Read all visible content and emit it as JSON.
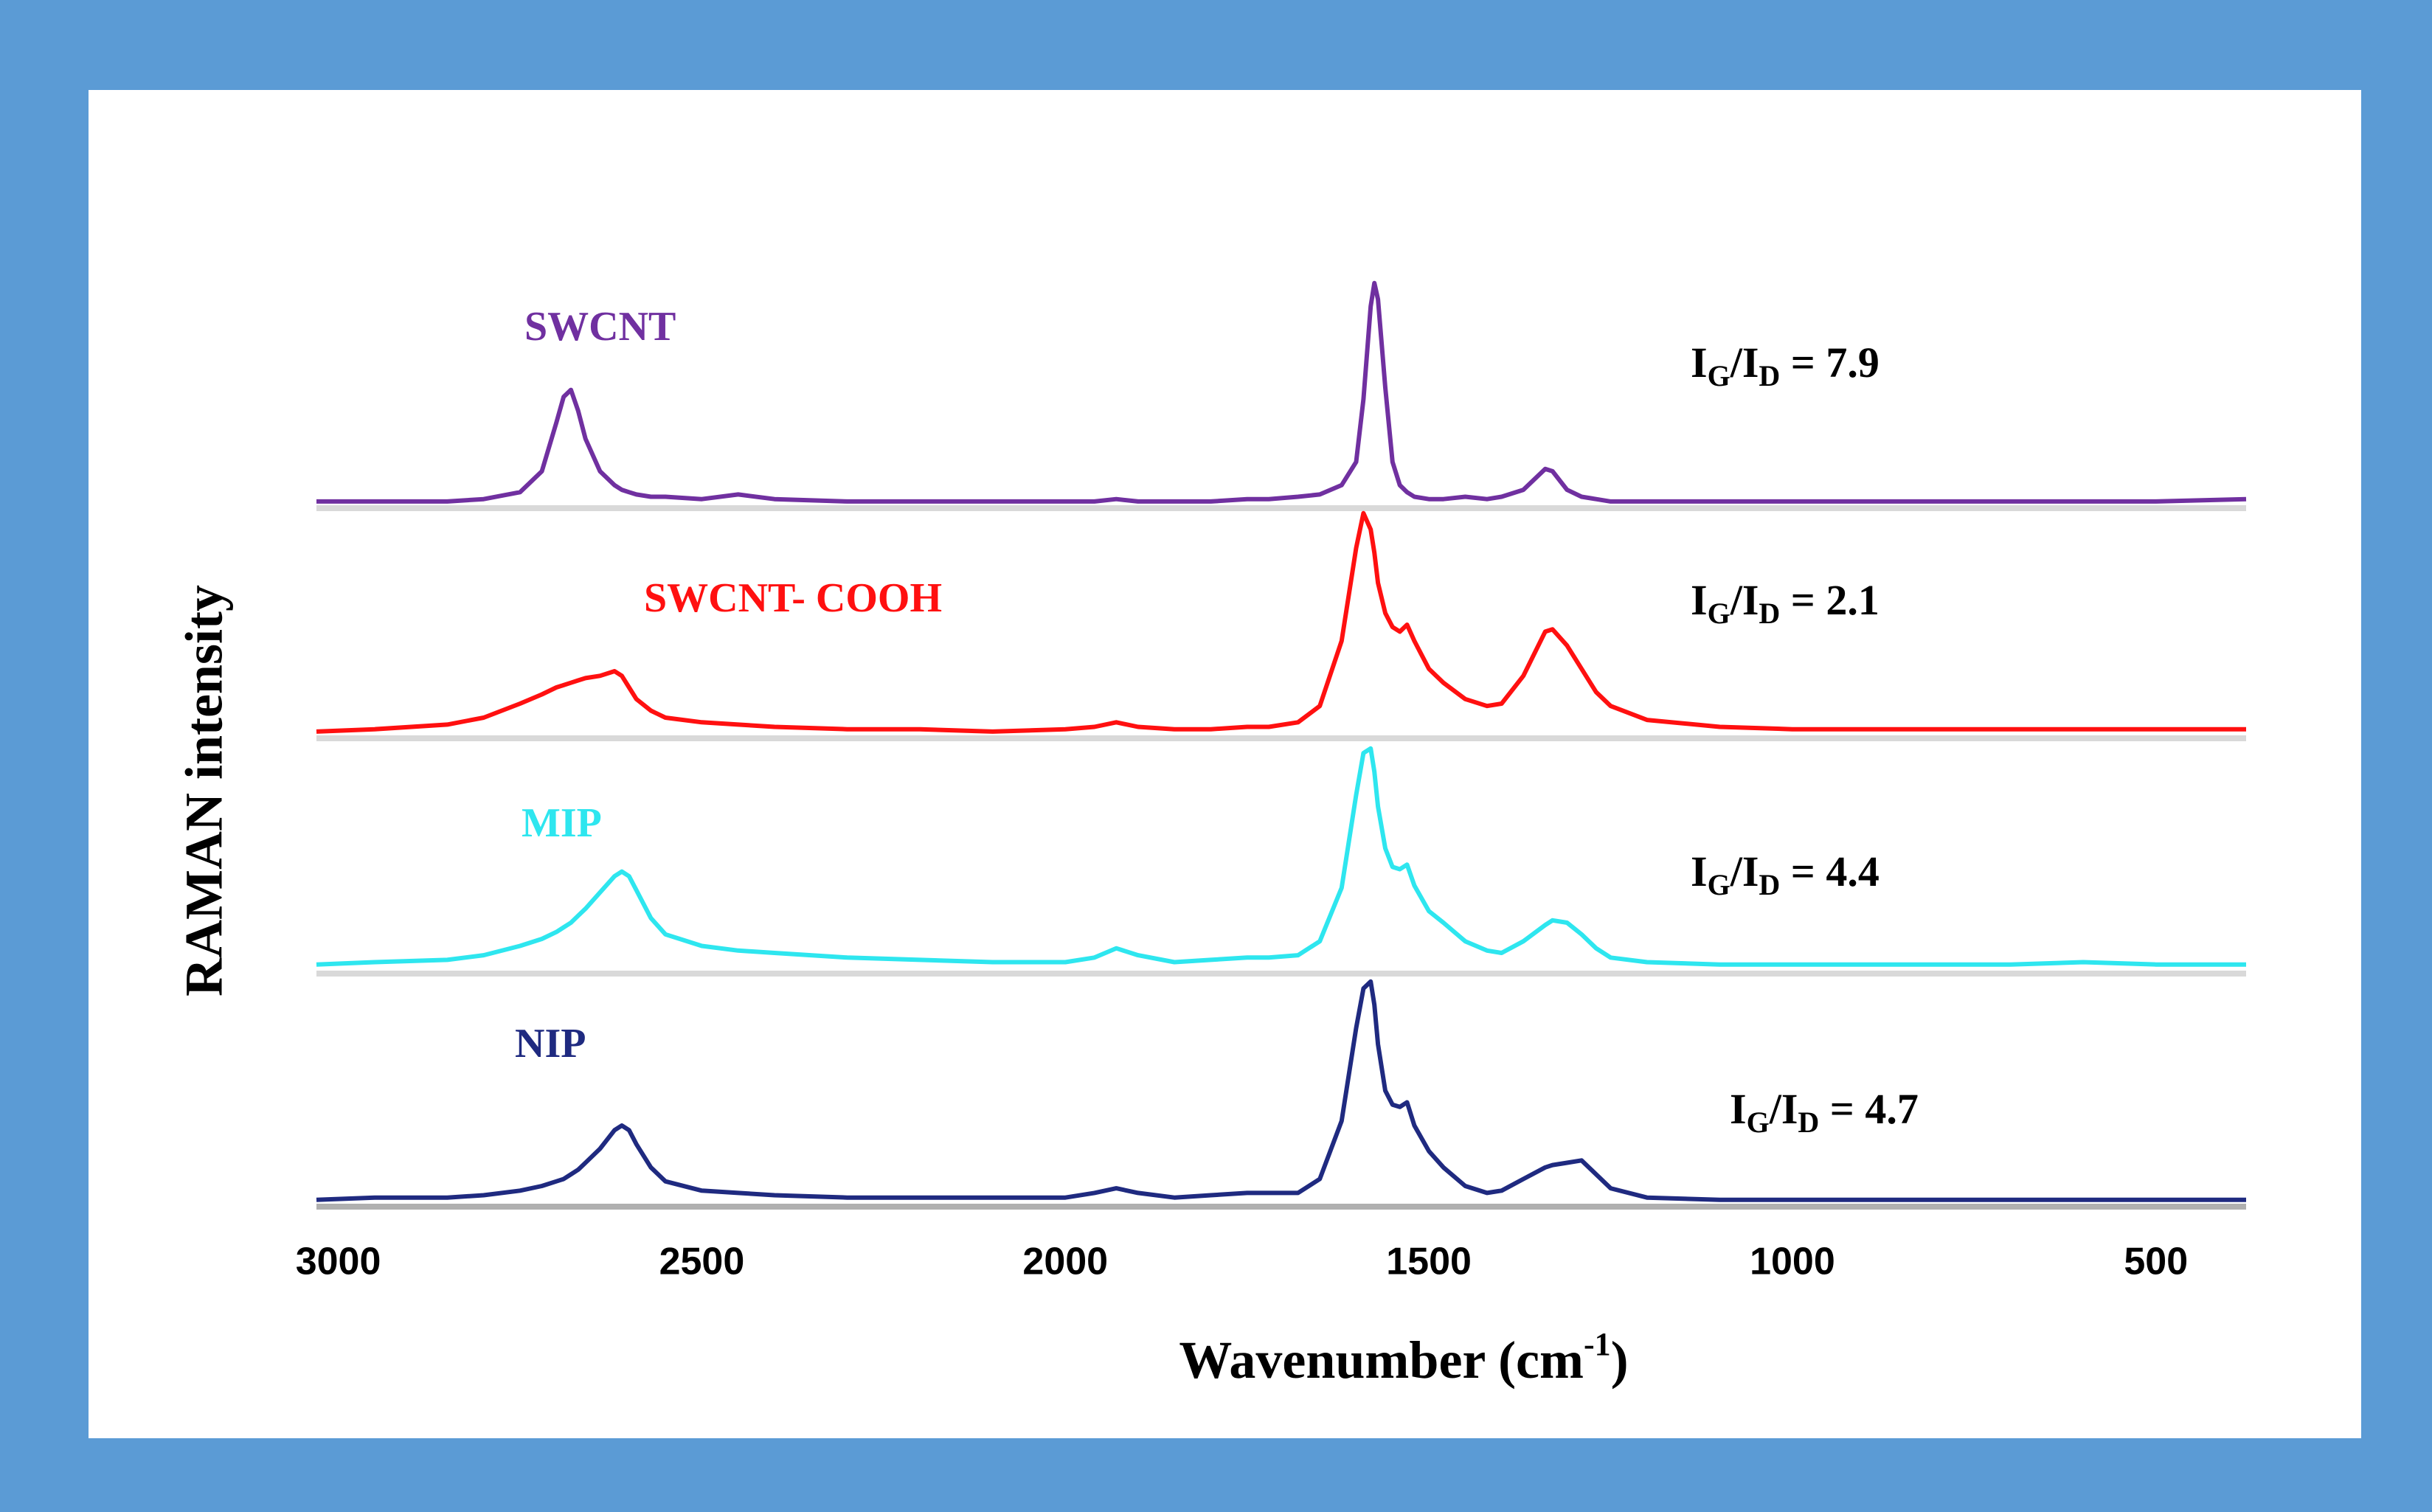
{
  "chart_data": {
    "type": "line",
    "x_label": [
      "Wavenumber (cm",
      "-1",
      ")"
    ],
    "y_label": "RAMAN intensity",
    "ratio_label": [
      "I",
      "G",
      "/I",
      "D",
      " = "
    ],
    "xlim": [
      3030,
      376
    ],
    "xticks": [
      3000,
      2500,
      2000,
      1500,
      1000,
      500
    ],
    "ylim": [
      0,
      100
    ],
    "x": [
      3030,
      2950,
      2850,
      2800,
      2750,
      2720,
      2700,
      2690,
      2680,
      2670,
      2660,
      2640,
      2620,
      2610,
      2600,
      2590,
      2570,
      2550,
      2500,
      2450,
      2400,
      2300,
      2200,
      2100,
      2000,
      1960,
      1930,
      1900,
      1850,
      1800,
      1750,
      1720,
      1680,
      1650,
      1620,
      1600,
      1590,
      1580,
      1575,
      1570,
      1560,
      1550,
      1540,
      1530,
      1520,
      1500,
      1480,
      1450,
      1420,
      1400,
      1370,
      1340,
      1330,
      1310,
      1290,
      1270,
      1250,
      1200,
      1100,
      1000,
      900,
      800,
      700,
      600,
      500,
      376
    ],
    "series": [
      {
        "name": "SWCNT",
        "color": "#7030a0",
        "ratio": 7.9,
        "values": [
          1,
          1,
          1,
          2,
          5,
          14,
          35,
          46,
          49,
          40,
          28,
          14,
          8,
          6,
          5,
          4,
          3,
          3,
          2,
          4,
          2,
          1,
          1,
          1,
          1,
          1,
          2,
          1,
          1,
          1,
          2,
          2,
          3,
          4,
          8,
          18,
          45,
          85,
          95,
          88,
          50,
          18,
          8,
          5,
          3,
          2,
          2,
          3,
          2,
          3,
          6,
          15,
          14,
          6,
          3,
          2,
          1,
          1,
          1,
          1,
          1,
          1,
          1,
          1,
          1,
          2
        ]
      },
      {
        "name": "SWCNT- COOH",
        "color": "#ff1010",
        "ratio": 2.1,
        "values": [
          1,
          2,
          4,
          7,
          13,
          17,
          20,
          21,
          22,
          23,
          24,
          25,
          27,
          25,
          20,
          15,
          10,
          7,
          5,
          4,
          3,
          2,
          2,
          1,
          2,
          3,
          5,
          3,
          2,
          2,
          3,
          3,
          5,
          12,
          40,
          80,
          95,
          88,
          78,
          65,
          52,
          46,
          44,
          47,
          40,
          28,
          22,
          15,
          12,
          13,
          25,
          44,
          45,
          38,
          28,
          18,
          12,
          6,
          3,
          2,
          2,
          2,
          2,
          2,
          2,
          2
        ]
      },
      {
        "name": "MIP",
        "color": "#2ee6ef",
        "ratio": 4.4,
        "values": [
          2,
          3,
          4,
          6,
          10,
          13,
          16,
          18,
          20,
          23,
          26,
          33,
          40,
          42,
          40,
          34,
          22,
          15,
          10,
          8,
          7,
          5,
          4,
          3,
          3,
          5,
          9,
          6,
          3,
          4,
          5,
          5,
          6,
          12,
          35,
          75,
          93,
          95,
          85,
          70,
          52,
          44,
          43,
          45,
          36,
          25,
          20,
          12,
          8,
          7,
          12,
          19,
          21,
          20,
          15,
          9,
          5,
          3,
          2,
          2,
          2,
          2,
          2,
          3,
          2,
          2
        ]
      },
      {
        "name": "NIP",
        "color": "#1f2a80",
        "ratio": 4.7,
        "values": [
          1,
          2,
          2,
          3,
          5,
          7,
          9,
          10,
          12,
          14,
          17,
          23,
          31,
          33,
          31,
          25,
          15,
          9,
          5,
          4,
          3,
          2,
          2,
          2,
          2,
          4,
          6,
          4,
          2,
          3,
          4,
          4,
          4,
          10,
          35,
          75,
          92,
          95,
          85,
          68,
          48,
          42,
          41,
          43,
          33,
          22,
          15,
          7,
          4,
          5,
          10,
          15,
          16,
          17,
          18,
          12,
          6,
          2,
          1,
          1,
          1,
          1,
          1,
          1,
          1,
          1
        ]
      }
    ]
  }
}
